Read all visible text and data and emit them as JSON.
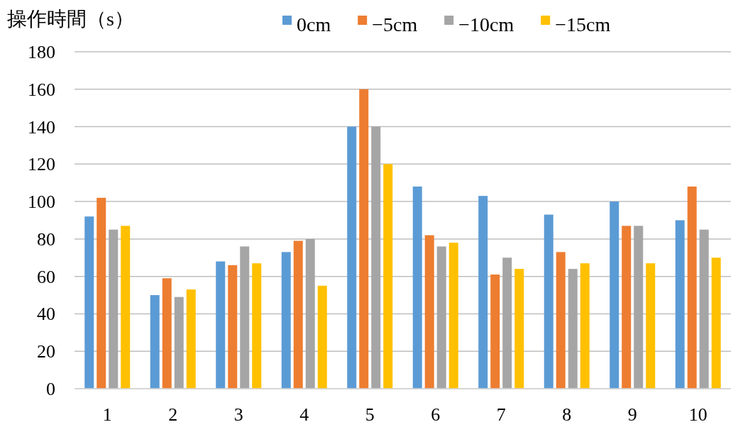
{
  "chart_data": {
    "type": "bar",
    "ylabel": "操作時間（s）",
    "categories": [
      "1",
      "2",
      "3",
      "4",
      "5",
      "6",
      "7",
      "8",
      "9",
      "10"
    ],
    "series": [
      {
        "name": "0cm",
        "color": "#5b9bd5",
        "values": [
          92,
          50,
          68,
          73,
          140,
          108,
          103,
          93,
          100,
          90
        ]
      },
      {
        "name": "−5cm",
        "color": "#ed7d31",
        "values": [
          102,
          59,
          66,
          79,
          160,
          82,
          61,
          73,
          87,
          108
        ]
      },
      {
        "name": "−10cm",
        "color": "#a5a5a5",
        "values": [
          85,
          49,
          76,
          80,
          140,
          76,
          70,
          64,
          87,
          85
        ]
      },
      {
        "name": "−15cm",
        "color": "#ffc000",
        "values": [
          87,
          53,
          67,
          55,
          120,
          78,
          64,
          67,
          67,
          70
        ]
      }
    ],
    "ylim": [
      0,
      180
    ],
    "yticks": [
      0,
      20,
      40,
      60,
      80,
      100,
      120,
      140,
      160,
      180
    ],
    "grid": "y",
    "legend": "top"
  }
}
